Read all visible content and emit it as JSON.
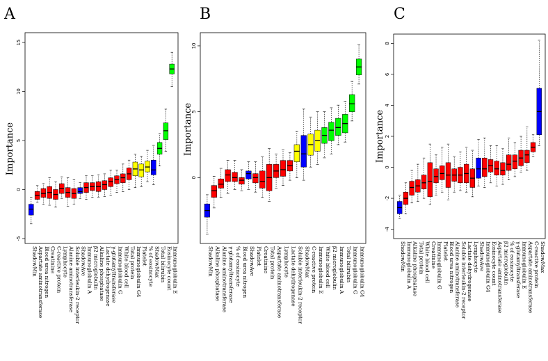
{
  "colors": {
    "red": "#ff0000",
    "blue": "#0000ff",
    "yellow": "#ffff00",
    "green": "#00ff00"
  },
  "chart_data": [
    {
      "type": "boxplot",
      "panel": "A",
      "ylabel": "Importance",
      "ylim": [
        -5.5,
        16
      ],
      "yticks": [
        -5,
        0,
        5,
        10,
        15
      ],
      "categories": [
        "ShadowMin",
        "Aspartate aminotransferase",
        "Blood urea nitrogen",
        "Creatinine",
        "C-reactive protein",
        "Lymphocyte",
        "Alanine aminotransferase",
        "Soluble interleukin-2 receptor",
        "ShadowAve",
        "Immunoglobulin A",
        "β2 microglobulin",
        "Alkaline phosphatase",
        "Lactate dehydrogenase",
        "γ-glutamyltransferase",
        "Immunoglobulin G",
        "White blood cell",
        "Total protein",
        "Immunoglobulin G4",
        "Platelet",
        "% of eosinocyte",
        "ShadowMax",
        "Total bilirubin",
        "Eosinocyte count",
        "Immunoglobulin E"
      ],
      "colors": [
        "blue",
        "red",
        "red",
        "red",
        "red",
        "red",
        "red",
        "red",
        "blue",
        "red",
        "red",
        "red",
        "red",
        "red",
        "red",
        "red",
        "red",
        "yellow",
        "yellow",
        "yellow",
        "blue",
        "green",
        "green",
        "green"
      ],
      "boxes": [
        [
          -3.5,
          -2.6,
          -2.0,
          -1.5,
          -0.8
        ],
        [
          -1.3,
          -1.0,
          -0.6,
          -0.2,
          0.4
        ],
        [
          -1.5,
          -0.8,
          -0.4,
          0.1,
          0.6
        ],
        [
          -1.6,
          -0.9,
          -0.3,
          0.3,
          1.2
        ],
        [
          -1.8,
          -1.0,
          -0.5,
          0.0,
          0.8
        ],
        [
          -0.9,
          -0.4,
          0.1,
          0.6,
          1.3
        ],
        [
          -1.7,
          -0.8,
          -0.3,
          0.2,
          1.2
        ],
        [
          -1.5,
          -0.9,
          -0.4,
          0.1,
          1.0
        ],
        [
          -0.9,
          -0.4,
          -0.2,
          0.2,
          0.7
        ],
        [
          -1.0,
          -0.3,
          0.2,
          0.7,
          1.4
        ],
        [
          -0.8,
          -0.1,
          0.3,
          0.7,
          1.4
        ],
        [
          -0.8,
          -0.2,
          0.3,
          0.8,
          1.5
        ],
        [
          -0.7,
          0.0,
          0.5,
          0.9,
          1.6
        ],
        [
          -0.6,
          0.3,
          0.8,
          1.2,
          2.0
        ],
        [
          -0.3,
          0.6,
          1.0,
          1.4,
          2.0
        ],
        [
          -0.2,
          0.7,
          1.2,
          1.6,
          2.6
        ],
        [
          0.0,
          1.0,
          1.6,
          2.2,
          3.0
        ],
        [
          0.2,
          1.4,
          2.1,
          2.8,
          3.6
        ],
        [
          0.3,
          1.3,
          2.0,
          2.6,
          3.4
        ],
        [
          0.8,
          1.8,
          2.3,
          2.9,
          4.0
        ],
        [
          0.5,
          1.5,
          2.0,
          3.0,
          4.5
        ],
        [
          2.4,
          3.6,
          4.2,
          4.8,
          5.7
        ],
        [
          3.9,
          5.1,
          6.0,
          6.8,
          8.2
        ],
        [
          10.5,
          11.8,
          12.3,
          12.8,
          14.0
        ]
      ]
    },
    {
      "type": "boxplot",
      "panel": "B",
      "ylabel": "Importance",
      "ylim": [
        -5.0,
        11
      ],
      "yticks": [
        0,
        5,
        10
      ],
      "categories": [
        "ShadowMin",
        "Alkaline phosphatase",
        "Alanine aminotransferase",
        "γ-glutamyltransferase",
        "% of eosinocyte",
        "Blood urea nitrogen",
        "ShadowAve",
        "Platelet",
        "Creatinine",
        "Total protein",
        "Aspartate aminotransferase",
        "Lymphocyte",
        "Lactate dehydrogenase",
        "Soluble interleukin-2 receptor",
        "ShadowMax",
        "C-reactive protein",
        "Immunoglobulin E",
        "White blood cell",
        "β2 microglobulin",
        "Immunoglobulin A",
        "Total bilirubin",
        "Immunoglobulin G",
        "Immunoglobulin G4"
      ],
      "colors": [
        "blue",
        "red",
        "red",
        "red",
        "red",
        "red",
        "blue",
        "red",
        "red",
        "red",
        "red",
        "red",
        "red",
        "yellow",
        "blue",
        "yellow",
        "yellow",
        "green",
        "green",
        "green",
        "green",
        "green",
        "green"
      ],
      "boxes": [
        [
          -4.3,
          -3.0,
          -2.5,
          -2.0,
          -1.3
        ],
        [
          -2.3,
          -1.5,
          -1.0,
          -0.6,
          0.1
        ],
        [
          -1.5,
          -0.8,
          -0.5,
          -0.1,
          0.7
        ],
        [
          -1.2,
          -0.3,
          0.2,
          0.6,
          1.3
        ],
        [
          -0.9,
          -0.3,
          0.0,
          0.4,
          1.3
        ],
        [
          -1.0,
          -0.5,
          -0.2,
          0.0,
          0.6
        ],
        [
          -0.9,
          -0.1,
          0.3,
          0.5,
          1.2
        ],
        [
          -1.1,
          -0.4,
          0.0,
          0.3,
          1.2
        ],
        [
          -1.5,
          -0.8,
          -0.3,
          0.5,
          1.6
        ],
        [
          -1.8,
          -1.0,
          0.0,
          1.0,
          2.2
        ],
        [
          -0.8,
          0.0,
          0.5,
          1.0,
          1.8
        ],
        [
          -0.6,
          0.1,
          0.6,
          1.3,
          2.1
        ],
        [
          -0.2,
          0.5,
          0.9,
          1.3,
          1.9
        ],
        [
          0.0,
          1.2,
          2.0,
          2.5,
          3.5
        ],
        [
          -0.2,
          0.8,
          1.8,
          3.2,
          5.2
        ],
        [
          0.8,
          1.7,
          2.5,
          3.3,
          4.6
        ],
        [
          1.0,
          2.0,
          2.8,
          3.6,
          5.0
        ],
        [
          1.5,
          2.6,
          3.2,
          3.8,
          5.0
        ],
        [
          1.8,
          2.8,
          3.6,
          4.2,
          5.3
        ],
        [
          2.5,
          3.2,
          3.8,
          4.5,
          5.5
        ],
        [
          2.7,
          3.4,
          4.1,
          4.8,
          5.8
        ],
        [
          4.3,
          5.0,
          5.6,
          6.3,
          7.3
        ],
        [
          7.1,
          7.8,
          8.4,
          9.0,
          10.1
        ]
      ]
    },
    {
      "type": "boxplot",
      "panel": "C",
      "ylabel": "Importance",
      "ylim": [
        -4.6,
        8.6
      ],
      "yticks": [
        -4,
        -2,
        0,
        2,
        4,
        6,
        8
      ],
      "categories": [
        "ShadowMin",
        "Immunoglobulin A",
        "Alkaline phosphatase",
        "Total protein",
        "White blood cell",
        "Creatinine",
        "Immunoglobulin G",
        "Platelet",
        "Blood urea nitrogen",
        "Alanine aminotransferase",
        "Soluble interleukin-2 receptor",
        "Lactate dehydrogenase",
        "Lymphocyte",
        "ShadowAve",
        "Immunoglobulin G4",
        "Eosinocyte count",
        "Aspartate aminotransferase",
        "β2 microglobulin",
        "% of eosinocyte",
        "γ-glutamyltransferase",
        "Immunoglobulin E",
        "Aspartate aminotransferase",
        "C-reactive protein",
        "ShadowMax"
      ],
      "colors": [
        "blue",
        "red",
        "red",
        "red",
        "red",
        "red",
        "red",
        "red",
        "red",
        "red",
        "red",
        "red",
        "red",
        "blue",
        "red",
        "red",
        "red",
        "red",
        "red",
        "red",
        "red",
        "red",
        "red",
        "blue"
      ],
      "boxes": [
        [
          -3.3,
          -3.0,
          -2.6,
          -2.2,
          -1.8
        ],
        [
          -3.0,
          -2.4,
          -2.0,
          -1.6,
          -1.0
        ],
        [
          -2.3,
          -1.8,
          -1.3,
          -0.9,
          -0.2
        ],
        [
          -2.2,
          -1.6,
          -1.2,
          -0.8,
          0.2
        ],
        [
          -2.0,
          -1.4,
          -1.0,
          -0.5,
          0.6
        ],
        [
          -2.4,
          -1.9,
          -0.9,
          0.3,
          1.5
        ],
        [
          -1.8,
          -1.0,
          -0.6,
          -0.1,
          0.8
        ],
        [
          -1.6,
          -0.8,
          -0.4,
          0.1,
          1.3
        ],
        [
          -2.1,
          -1.3,
          -0.5,
          0.3,
          1.5
        ],
        [
          -1.6,
          -0.9,
          -0.5,
          -0.1,
          0.7
        ],
        [
          -1.5,
          -1.0,
          -0.5,
          0.0,
          1.0
        ],
        [
          -1.6,
          -1.0,
          -0.4,
          0.2,
          1.3
        ],
        [
          -1.9,
          -1.3,
          -0.7,
          -0.1,
          1.1
        ],
        [
          -1.2,
          -0.7,
          -0.1,
          0.6,
          1.8
        ],
        [
          -1.3,
          -0.6,
          -0.1,
          0.6,
          1.9
        ],
        [
          -1.0,
          -0.3,
          0.1,
          0.5,
          1.4
        ],
        [
          -1.2,
          -0.5,
          -0.1,
          0.4,
          1.4
        ],
        [
          -1.1,
          -0.5,
          -0.2,
          0.3,
          1.2
        ],
        [
          -0.8,
          -0.2,
          0.2,
          0.8,
          1.9
        ],
        [
          -0.6,
          -0.1,
          0.4,
          0.8,
          1.6
        ],
        [
          -0.3,
          0.1,
          0.6,
          1.1,
          2.0
        ],
        [
          -0.2,
          0.3,
          0.8,
          1.1,
          2.6
        ],
        [
          0.7,
          1.0,
          1.3,
          1.6,
          2.1
        ],
        [
          1.4,
          2.1,
          3.6,
          5.1,
          8.2
        ]
      ]
    }
  ]
}
